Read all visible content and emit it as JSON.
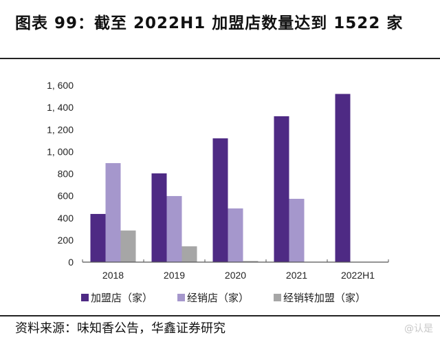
{
  "title": "图表 99：截至 2022H1 加盟店数量达到 1522 家",
  "source": "资料来源：味知香公告，华鑫证券研究",
  "watermark": "@认是",
  "chart_data": {
    "type": "bar",
    "title": "图表 99：截至 2022H1 加盟店数量达到 1522 家",
    "xlabel": "",
    "ylabel": "",
    "categories": [
      "2018",
      "2019",
      "2020",
      "2021",
      "2022H1"
    ],
    "ylim": [
      0,
      1600
    ],
    "yticks": [
      0,
      200,
      400,
      600,
      800,
      1000,
      1200,
      1400,
      1600
    ],
    "ytick_labels": [
      "0",
      "200",
      "400",
      "600",
      "800",
      "1, 000",
      "1, 200",
      "1, 400",
      "1, 600"
    ],
    "grid": false,
    "legend_position": "bottom",
    "series": [
      {
        "name": "加盟店（家）",
        "color": "#4e2a84",
        "values": [
          436,
          803,
          1120,
          1320,
          1522
        ]
      },
      {
        "name": "经销店（家）",
        "color": "#a597cc",
        "values": [
          896,
          598,
          486,
          573,
          0
        ]
      },
      {
        "name": "经销转加盟（家）",
        "color": "#a6a6a6",
        "values": [
          286,
          143,
          10,
          0,
          0
        ]
      }
    ]
  }
}
